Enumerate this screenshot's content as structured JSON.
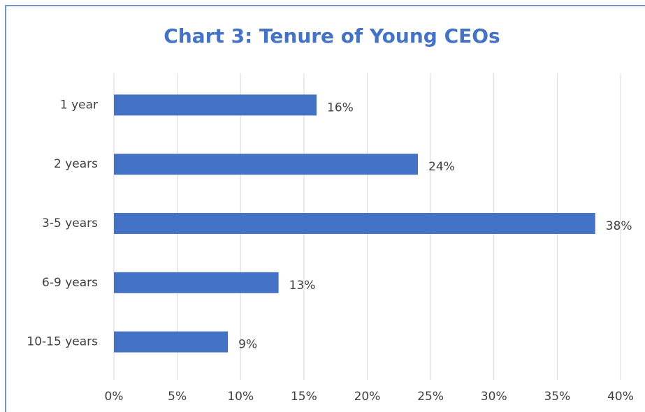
{
  "chart_data": {
    "type": "bar",
    "orientation": "horizontal",
    "title": "Chart 3: Tenure of Young CEOs",
    "categories": [
      "1 year",
      "2 years",
      "3-5 years",
      "6-9 years",
      "10-15 years"
    ],
    "values": [
      16,
      24,
      38,
      13,
      9
    ],
    "value_labels": [
      "16%",
      "24%",
      "38%",
      "13%",
      "9%"
    ],
    "color": "#4472c4",
    "xlim": [
      0,
      40
    ],
    "xticks": [
      {
        "value": 0,
        "label": "0%"
      },
      {
        "value": 5,
        "label": "5%"
      },
      {
        "value": 10,
        "label": "10%"
      },
      {
        "value": 15,
        "label": "15%"
      },
      {
        "value": 20,
        "label": "20%"
      },
      {
        "value": 25,
        "label": "25%"
      },
      {
        "value": 30,
        "label": "30%"
      },
      {
        "value": 35,
        "label": "35%"
      },
      {
        "value": 40,
        "label": "40%"
      }
    ],
    "grid": true
  }
}
